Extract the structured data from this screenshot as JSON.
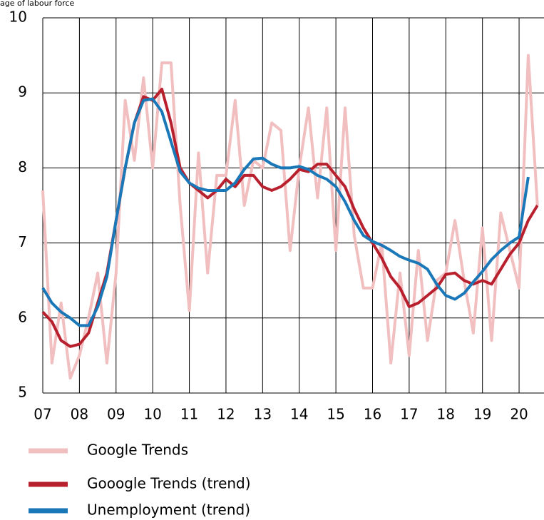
{
  "chart_data": {
    "type": "line",
    "subtitle": "age of labour force",
    "x": [
      2007,
      2007.25,
      2007.5,
      2007.75,
      2008,
      2008.25,
      2008.5,
      2008.75,
      2009,
      2009.25,
      2009.5,
      2009.75,
      2010,
      2010.25,
      2010.5,
      2010.75,
      2011,
      2011.25,
      2011.5,
      2011.75,
      2012,
      2012.25,
      2012.5,
      2012.75,
      2013,
      2013.25,
      2013.5,
      2013.75,
      2014,
      2014.25,
      2014.5,
      2014.75,
      2015,
      2015.25,
      2015.5,
      2015.75,
      2016,
      2016.25,
      2016.5,
      2016.75,
      2017,
      2017.25,
      2017.5,
      2017.75,
      2018,
      2018.25,
      2018.5,
      2018.75,
      2019,
      2019.25,
      2019.5,
      2019.75,
      2020,
      2020.25,
      2020.5
    ],
    "series": [
      {
        "name": "Google Trends",
        "color": "#f2bfc0",
        "width": 4,
        "values": [
          7.7,
          5.4,
          6.2,
          5.2,
          5.5,
          6.0,
          6.6,
          5.4,
          6.6,
          8.9,
          8.1,
          9.2,
          8.0,
          9.4,
          9.4,
          7.5,
          6.1,
          8.2,
          6.6,
          7.9,
          7.9,
          8.9,
          7.5,
          8.1,
          8.0,
          8.6,
          8.5,
          6.9,
          8.0,
          8.8,
          7.6,
          8.8,
          6.9,
          8.8,
          7.1,
          6.4,
          6.4,
          7.0,
          5.4,
          6.6,
          5.5,
          6.9,
          5.7,
          6.5,
          6.6,
          7.3,
          6.5,
          5.8,
          7.2,
          5.7,
          7.4,
          6.9,
          6.4,
          9.5,
          7.5
        ]
      },
      {
        "name": "Gooogle Trends (trend)",
        "color": "#b8202e",
        "width": 4,
        "values": [
          6.08,
          5.95,
          5.7,
          5.62,
          5.65,
          5.8,
          6.2,
          6.6,
          7.3,
          8.0,
          8.6,
          8.95,
          8.9,
          9.05,
          8.6,
          8.0,
          7.8,
          7.7,
          7.6,
          7.7,
          7.85,
          7.75,
          7.9,
          7.9,
          7.75,
          7.7,
          7.75,
          7.85,
          7.98,
          7.95,
          8.05,
          8.05,
          7.9,
          7.75,
          7.45,
          7.2,
          7.0,
          6.8,
          6.55,
          6.4,
          6.15,
          6.2,
          6.3,
          6.4,
          6.58,
          6.6,
          6.5,
          6.45,
          6.5,
          6.45,
          6.65,
          6.85,
          7.0,
          7.3,
          7.5
        ]
      },
      {
        "name": "Unemployment (trend)",
        "color": "#1a78b8",
        "width": 4,
        "values": [
          6.4,
          6.2,
          6.08,
          6.0,
          5.9,
          5.9,
          6.15,
          6.55,
          7.3,
          8.0,
          8.6,
          8.9,
          8.92,
          8.75,
          8.35,
          7.95,
          7.8,
          7.73,
          7.7,
          7.7,
          7.7,
          7.8,
          7.98,
          8.12,
          8.13,
          8.05,
          8.0,
          8.0,
          8.02,
          7.98,
          7.9,
          7.85,
          7.75,
          7.55,
          7.3,
          7.1,
          7.02,
          6.97,
          6.9,
          6.82,
          6.77,
          6.73,
          6.65,
          6.45,
          6.3,
          6.25,
          6.33,
          6.48,
          6.62,
          6.78,
          6.9,
          7.0,
          7.08,
          7.88,
          null
        ]
      }
    ],
    "xlim": [
      2007,
      2020.68
    ],
    "xticks": [
      {
        "value": 2007,
        "label": "07"
      },
      {
        "value": 2008,
        "label": "08"
      },
      {
        "value": 2009,
        "label": "09"
      },
      {
        "value": 2010,
        "label": "10"
      },
      {
        "value": 2011,
        "label": "11"
      },
      {
        "value": 2012,
        "label": "12"
      },
      {
        "value": 2013,
        "label": "13"
      },
      {
        "value": 2014,
        "label": "14"
      },
      {
        "value": 2015,
        "label": "15"
      },
      {
        "value": 2016,
        "label": "16"
      },
      {
        "value": 2017,
        "label": "17"
      },
      {
        "value": 2018,
        "label": "18"
      },
      {
        "value": 2019,
        "label": "19"
      },
      {
        "value": 2020,
        "label": "20"
      }
    ],
    "ylim": [
      5,
      10
    ],
    "yticks": [
      5,
      6,
      7,
      8,
      9,
      10
    ],
    "grid": true,
    "legend": "bottom"
  }
}
